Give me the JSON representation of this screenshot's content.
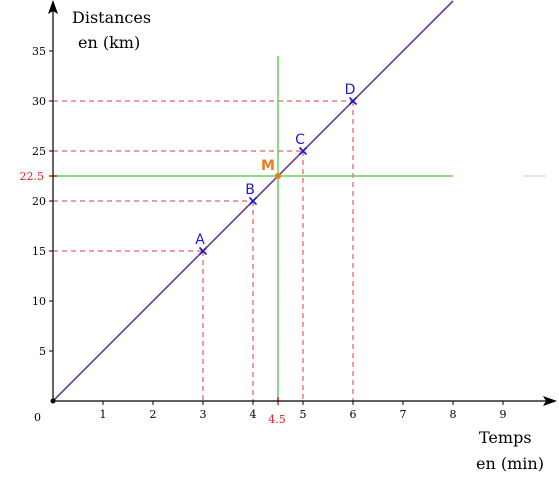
{
  "chart_data": {
    "type": "line",
    "axes": {
      "ylabel_line1": "Distances",
      "ylabel_line2": "en (km)",
      "xlabel_line1": "Temps",
      "xlabel_line2": "en (min)",
      "origin_label": "0",
      "xlim": [
        0,
        10
      ],
      "ylim": [
        0,
        40
      ],
      "x_ticks": [
        1,
        2,
        3,
        4,
        5,
        6,
        7,
        8,
        9
      ],
      "y_ticks": [
        5,
        10,
        15,
        20,
        25,
        30,
        35
      ],
      "grid": false
    },
    "series": [
      {
        "x": [
          0,
          8
        ],
        "y": [
          0,
          40
        ]
      }
    ],
    "points": [
      {
        "label": "A",
        "x": 3,
        "y": 15
      },
      {
        "label": "B",
        "x": 4,
        "y": 20
      },
      {
        "label": "C",
        "x": 5,
        "y": 25
      },
      {
        "label": "D",
        "x": 6,
        "y": 30
      }
    ],
    "highlight_point": {
      "label": "M",
      "x": 4.5,
      "y": 22.5,
      "x_label": "4.5",
      "y_label": "22.5"
    },
    "reference_lines": {
      "vertical_x": 4.5,
      "horizontal_y": 22.5,
      "vertical_to_y": 34.5,
      "horizontal_to_x": 8
    },
    "colors": {
      "line": "#6a3d8a",
      "points": "#1a1adb",
      "guides": "#ee3333",
      "reference": "#6ccd5c",
      "highlight": "#ee7a1a",
      "highlight_label": "#dd2222",
      "axes": "#000000"
    }
  }
}
